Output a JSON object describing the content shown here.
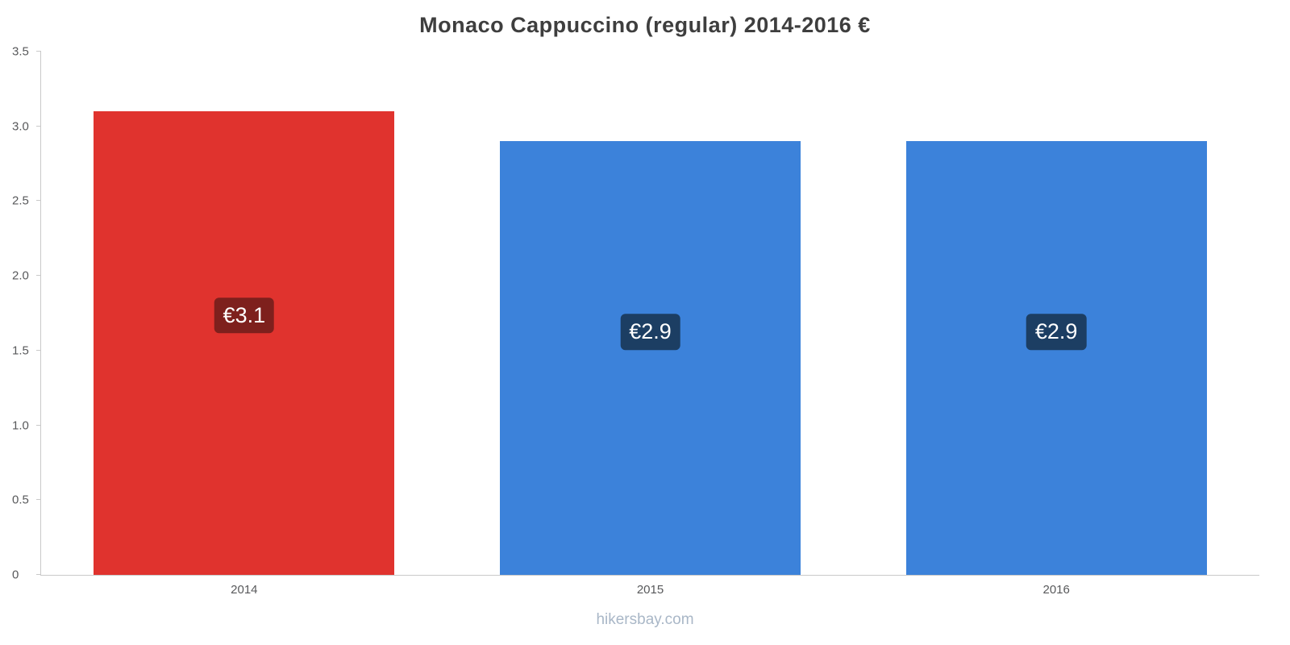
{
  "page": {
    "footer": "hikersbay.com"
  },
  "chart_data": {
    "type": "bar",
    "title": "Monaco Cappuccino (regular) 2014-2016 €",
    "categories": [
      "2014",
      "2015",
      "2016"
    ],
    "values": [
      3.1,
      2.9,
      2.9
    ],
    "value_labels": [
      "€3.1",
      "€2.9",
      "€2.9"
    ],
    "bar_colors": [
      "#e0332e",
      "#3c82da",
      "#3c82da"
    ],
    "badge_colors": [
      "#7e201d",
      "#1c3e63",
      "#1c3e63"
    ],
    "currency": "€",
    "xlabel": "",
    "ylabel": "",
    "ylim": [
      0,
      3.5
    ],
    "yticks": [
      0,
      0.5,
      1.0,
      1.5,
      2.0,
      2.5,
      3.0,
      3.5
    ],
    "ytick_labels": [
      "0",
      "0.5",
      "1.0",
      "1.5",
      "2.0",
      "2.5",
      "3.0",
      "3.5"
    ],
    "grid": false,
    "legend": false
  }
}
